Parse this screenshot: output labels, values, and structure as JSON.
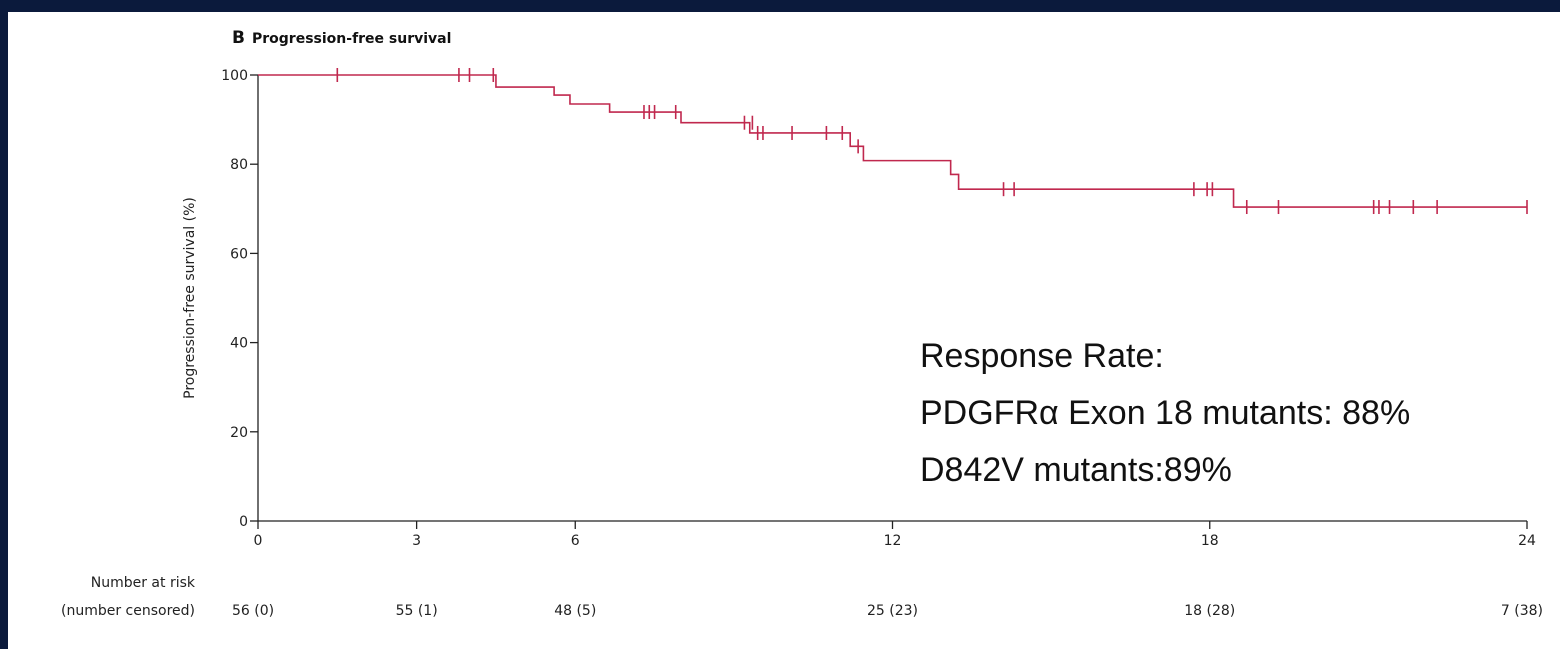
{
  "colors": {
    "background": "#0b1a3c",
    "panel": "#ffffff",
    "curve": "#c0284e",
    "axis": "#222222"
  },
  "panel": {
    "letter": "B",
    "title": "Progression-free survival"
  },
  "annotation": {
    "lines": [
      "Response Rate:",
      "PDGFRα Exon 18 mutants: 88%",
      "D842V mutants:89%"
    ]
  },
  "risk_table": {
    "title_line1": "Number at risk",
    "title_line2": "(number censored)",
    "entries": [
      {
        "time": 0,
        "label": "56 (0)"
      },
      {
        "time": 3,
        "label": "55 (1)"
      },
      {
        "time": 6,
        "label": "48 (5)"
      },
      {
        "time": 12,
        "label": "25 (23)"
      },
      {
        "time": 18,
        "label": "18 (28)"
      },
      {
        "time": 24,
        "label": "7 (38)"
      }
    ]
  },
  "chart_data": {
    "type": "line",
    "title": "Progression-free survival",
    "xlabel": "",
    "ylabel": "Progression-free survival (%)",
    "xlim": [
      0,
      24
    ],
    "ylim": [
      0,
      100
    ],
    "xticks": [
      0,
      3,
      6,
      12,
      18,
      24
    ],
    "yticks": [
      0,
      20,
      40,
      60,
      80,
      100
    ],
    "grid": false,
    "series": [
      {
        "steps": [
          [
            0,
            100
          ],
          [
            4.5,
            97.3
          ],
          [
            5.6,
            95.5
          ],
          [
            5.9,
            93.5
          ],
          [
            6.65,
            91.7
          ],
          [
            8.0,
            89.3
          ],
          [
            9.3,
            87.0
          ],
          [
            11.2,
            84.0
          ],
          [
            11.45,
            80.8
          ],
          [
            13.1,
            77.7
          ],
          [
            13.25,
            74.4
          ],
          [
            18.45,
            70.4
          ],
          [
            24,
            70.4
          ]
        ],
        "censored": [
          [
            1.5,
            100
          ],
          [
            3.8,
            100
          ],
          [
            4.0,
            100
          ],
          [
            4.45,
            100
          ],
          [
            7.3,
            91.7
          ],
          [
            7.4,
            91.7
          ],
          [
            7.5,
            91.7
          ],
          [
            7.9,
            91.7
          ],
          [
            9.2,
            89.3
          ],
          [
            9.35,
            89.3
          ],
          [
            9.45,
            87.0
          ],
          [
            9.55,
            87.0
          ],
          [
            10.1,
            87.0
          ],
          [
            10.75,
            87.0
          ],
          [
            11.05,
            87.0
          ],
          [
            11.35,
            84.0
          ],
          [
            14.1,
            74.4
          ],
          [
            14.3,
            74.4
          ],
          [
            17.7,
            74.4
          ],
          [
            17.95,
            74.4
          ],
          [
            18.05,
            74.4
          ],
          [
            18.7,
            70.4
          ],
          [
            19.3,
            70.4
          ],
          [
            21.1,
            70.4
          ],
          [
            21.2,
            70.4
          ],
          [
            21.4,
            70.4
          ],
          [
            21.85,
            70.4
          ],
          [
            22.3,
            70.4
          ],
          [
            24.0,
            70.4
          ]
        ]
      }
    ]
  }
}
